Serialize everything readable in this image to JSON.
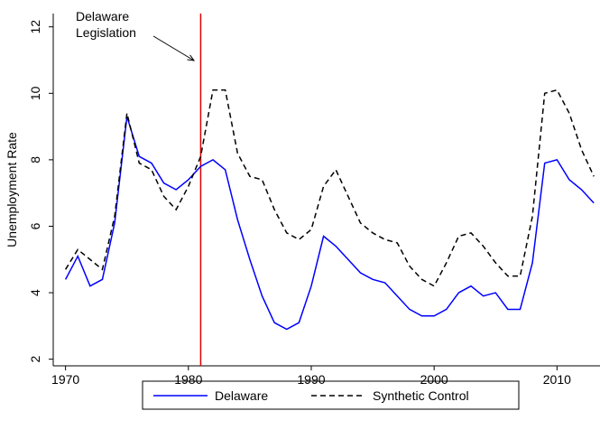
{
  "chart_data": {
    "type": "line",
    "x": [
      1970,
      1971,
      1972,
      1973,
      1974,
      1975,
      1976,
      1977,
      1978,
      1979,
      1980,
      1981,
      1982,
      1983,
      1984,
      1985,
      1986,
      1987,
      1988,
      1989,
      1990,
      1991,
      1992,
      1993,
      1994,
      1995,
      1996,
      1997,
      1998,
      1999,
      2000,
      2001,
      2002,
      2003,
      2004,
      2005,
      2006,
      2007,
      2008,
      2009,
      2010,
      2011,
      2012,
      2013
    ],
    "series": [
      {
        "name": "Delaware",
        "color": "#0000ff",
        "dash": "solid",
        "values": [
          4.4,
          5.1,
          4.2,
          4.4,
          6.1,
          9.3,
          8.1,
          7.9,
          7.3,
          7.1,
          7.4,
          7.8,
          8.0,
          7.7,
          6.2,
          5.0,
          3.9,
          3.1,
          2.9,
          3.1,
          4.2,
          5.7,
          5.4,
          5.0,
          4.6,
          4.4,
          4.3,
          3.9,
          3.5,
          3.3,
          3.3,
          3.5,
          4.0,
          4.2,
          3.9,
          4.0,
          3.5,
          3.5,
          4.9,
          7.9,
          8.0,
          7.4,
          7.1,
          6.7
        ]
      },
      {
        "name": "Synthetic Control",
        "color": "#000000",
        "dash": "dashed",
        "values": [
          4.7,
          5.3,
          5.0,
          4.7,
          6.3,
          9.4,
          7.9,
          7.7,
          6.9,
          6.5,
          7.2,
          8.1,
          10.1,
          10.1,
          8.2,
          7.5,
          7.4,
          6.5,
          5.8,
          5.6,
          5.9,
          7.2,
          7.7,
          6.9,
          6.1,
          5.8,
          5.6,
          5.5,
          4.8,
          4.4,
          4.2,
          4.9,
          5.7,
          5.8,
          5.4,
          4.9,
          4.5,
          4.5,
          6.3,
          10.0,
          10.1,
          9.4,
          8.3,
          7.5
        ]
      }
    ],
    "ylabel": "Unemployment Rate",
    "xlim": [
      1969,
      2013.5
    ],
    "xticks": [
      1970,
      1980,
      1990,
      2000,
      2010
    ],
    "ylim": [
      1.8,
      12.4
    ],
    "yticks": [
      2,
      4,
      6,
      8,
      10,
      12
    ],
    "vline": {
      "x": 1981,
      "color": "#e00000"
    },
    "annotation": [
      "Delaware",
      "Legislation"
    ],
    "legend": "bottom"
  }
}
